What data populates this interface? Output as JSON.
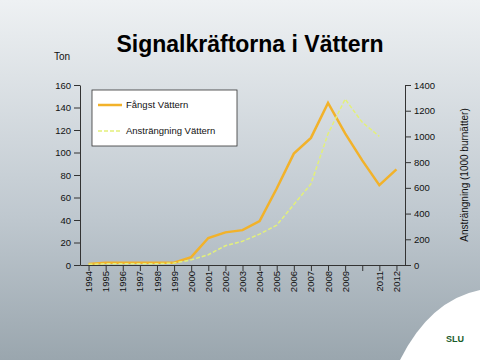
{
  "chart_data": {
    "type": "line",
    "title": "Signalkräftorna i Vättern",
    "ylabel": "Ton",
    "y2label": "Ansträngning (1000 burnätter)",
    "categories": [
      "1994",
      "1995",
      "1996",
      "1997",
      "1998",
      "1999",
      "2000",
      "2001",
      "2002",
      "2003",
      "2004",
      "2005",
      "2006",
      "2007",
      "2008",
      "2009",
      null,
      "2011",
      "2012"
    ],
    "series": [
      {
        "name": "Fångst Vättern",
        "color": "#f2b22a",
        "line_style": "solid",
        "values": [
          1,
          2,
          2,
          2,
          2,
          2,
          7,
          24,
          29,
          31,
          39,
          68,
          99,
          113,
          144,
          117,
          93,
          71,
          85
        ]
      },
      {
        "name": "Ansträngning Vättern",
        "color": "#e3f07a",
        "line_style": "dashed",
        "axis": "y2",
        "values": [
          5,
          10,
          10,
          10,
          10,
          15,
          40,
          80,
          150,
          185,
          240,
          310,
          470,
          630,
          1020,
          1290,
          1110,
          1000,
          null
        ]
      }
    ],
    "ylim": [
      0,
      160
    ],
    "yticks": [
      0,
      20,
      40,
      60,
      80,
      100,
      120,
      140,
      160
    ],
    "y2lim": [
      0,
      1400
    ],
    "y2ticks": [
      0,
      200,
      400,
      600,
      800,
      1000,
      1200,
      1400
    ],
    "grid": false,
    "legend": "upper left"
  },
  "logo": {
    "text": "SLU"
  }
}
